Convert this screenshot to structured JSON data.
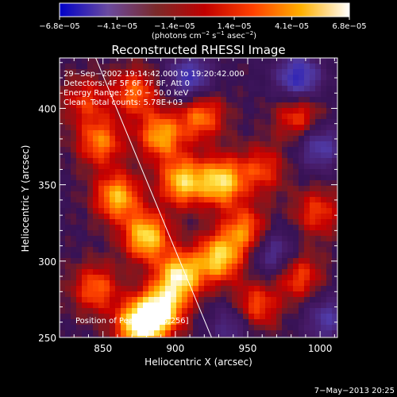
{
  "chart_data": {
    "type": "heatmap",
    "title": "Reconstructed RHESSI Image",
    "xlabel": "Heliocentric X (arcsec)",
    "ylabel": "Heliocentric Y (arcsec)",
    "xlim": [
      820,
      1012
    ],
    "ylim": [
      250,
      433
    ],
    "x_ticks": [
      850,
      900,
      950,
      1000
    ],
    "y_ticks": [
      250,
      300,
      350,
      400
    ],
    "colorbar": {
      "range": [
        -6.8e-05,
        6.8e-05
      ],
      "tick_labels": [
        "−6.8e−05",
        "−4.1e−05",
        "−1.4e−05",
        "1.4e−05",
        "4.1e−05",
        "6.8e−05"
      ],
      "tick_values": [
        -6.8e-05,
        -4.1e-05,
        -1.4e-05,
        1.4e-05,
        4.1e-05,
        6.8e-05
      ],
      "units_prefix": "(photons cm",
      "units_sup1": "−2",
      "units_mid": " s",
      "units_sup2": "−1",
      "units_suffix": " asec",
      "units_sup3": "−2",
      "units_end": ")",
      "colors": [
        "#0000c8",
        "#6a4aa0",
        "#7a2a2a",
        "#c00000",
        "#ff4000",
        "#ffb000",
        "#ffffff"
      ]
    },
    "annotations": {
      "time": "29−Sep−2002 19:14:42.000 to 19:20:42.000",
      "detectors": "Detectors: 4F 5F 6F 7F 8F, Att 0",
      "energy": "Energy Range: 25.0 − 50.0 keV",
      "clean_label": "Clean",
      "counts": "Total counts: 5.78E+03",
      "position": "Position of Peak = [875,256]"
    },
    "limb_line": {
      "x": [
        845,
        925
      ],
      "y": [
        433,
        250
      ]
    },
    "hot_spots": [
      {
        "x": 848,
        "y": 378,
        "v": 0.6
      },
      {
        "x": 860,
        "y": 342,
        "v": 0.75
      },
      {
        "x": 872,
        "y": 410,
        "v": 0.55
      },
      {
        "x": 890,
        "y": 382,
        "v": 0.7
      },
      {
        "x": 880,
        "y": 316,
        "v": 0.85
      },
      {
        "x": 905,
        "y": 352,
        "v": 0.8
      },
      {
        "x": 918,
        "y": 395,
        "v": 0.6
      },
      {
        "x": 932,
        "y": 352,
        "v": 0.85
      },
      {
        "x": 903,
        "y": 290,
        "v": 0.9
      },
      {
        "x": 930,
        "y": 302,
        "v": 0.8
      },
      {
        "x": 948,
        "y": 320,
        "v": 0.6
      },
      {
        "x": 875,
        "y": 258,
        "v": 1.0
      },
      {
        "x": 890,
        "y": 268,
        "v": 0.9
      },
      {
        "x": 845,
        "y": 282,
        "v": 0.55
      },
      {
        "x": 960,
        "y": 360,
        "v": 0.45
      },
      {
        "x": 985,
        "y": 395,
        "v": 0.5
      },
      {
        "x": 955,
        "y": 270,
        "v": 0.55
      },
      {
        "x": 985,
        "y": 290,
        "v": 0.5
      },
      {
        "x": 998,
        "y": 332,
        "v": 0.45
      },
      {
        "x": 838,
        "y": 405,
        "v": 0.4
      }
    ],
    "cold_spots": [
      {
        "x": 910,
        "y": 420,
        "v": -0.6
      },
      {
        "x": 985,
        "y": 420,
        "v": -0.7
      },
      {
        "x": 1000,
        "y": 375,
        "v": -0.5
      },
      {
        "x": 968,
        "y": 305,
        "v": -0.45
      },
      {
        "x": 940,
        "y": 258,
        "v": -0.4
      },
      {
        "x": 1005,
        "y": 262,
        "v": -0.45
      }
    ]
  },
  "footer": {
    "date": "7−May−2013 20:25"
  }
}
